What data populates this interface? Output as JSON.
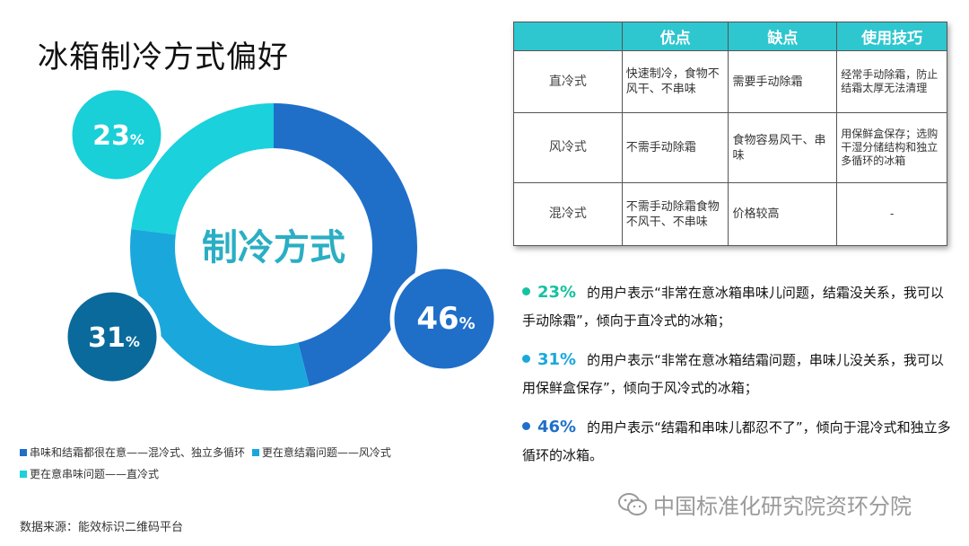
{
  "title": "冰箱制冷方式偏好",
  "chart_data": {
    "type": "pie",
    "center_label": "制冷方式",
    "slices": [
      {
        "value": 46,
        "label": "46",
        "unit": "%",
        "color": "#1f6fc9"
      },
      {
        "value": 31,
        "label": "31",
        "unit": "%",
        "color": "#1aa8dc"
      },
      {
        "value": 23,
        "label": "23",
        "unit": "%",
        "color": "#1ad1dc"
      }
    ],
    "bubble_colors": [
      "#1f6fc9",
      "#0a6a9c",
      "#19cfd8"
    ]
  },
  "legend": [
    {
      "label": "串味和结霜都很在意——混冷式、独立多循环",
      "color": "#1f6fc9"
    },
    {
      "label": "更在意结霜问题——风冷式",
      "color": "#1aa8dc"
    },
    {
      "label": "更在意串味问题——直冷式",
      "color": "#1ad1dc"
    }
  ],
  "source": "数据来源：能效标识二维码平台",
  "table": {
    "headers": [
      "",
      "优点",
      "缺点",
      "使用技巧"
    ],
    "rows": [
      {
        "type": "直冷式",
        "pros": "快速制冷，食物不风干、不串味",
        "cons": "需要手动除霜",
        "tips": "经常手动除霜，防止结霜太厚无法清理"
      },
      {
        "type": "风冷式",
        "pros": "不需手动除霜",
        "cons": "食物容易风干、串味",
        "tips": "用保鲜盒保存；选购干湿分储结构和独立多循环的冰箱"
      },
      {
        "type": "混冷式",
        "pros": "不需手动除霜食物不风干、不串味",
        "cons": "价格较高",
        "tips": "-"
      }
    ]
  },
  "bullets": [
    {
      "pct": "23%",
      "text": "的用户表示“非常在意冰箱串味儿问题，结霜没关系，我可以手动除霜”，倾向于直冷式的冰箱；",
      "color": "#16c2a0"
    },
    {
      "pct": "31%",
      "text": "的用户表示“非常在意冰箱结霜问题，串味儿没关系，我可以用保鲜盒保存”，倾向于风冷式的冰箱；",
      "color": "#1aa8dc"
    },
    {
      "pct": "46%",
      "text": "的用户表示“结霜和串味儿都忍不了”，倾向于混冷式和独立多循环的冰箱。",
      "color": "#1f6fc9"
    }
  ],
  "watermark": "中国标准化研究院资环分院"
}
